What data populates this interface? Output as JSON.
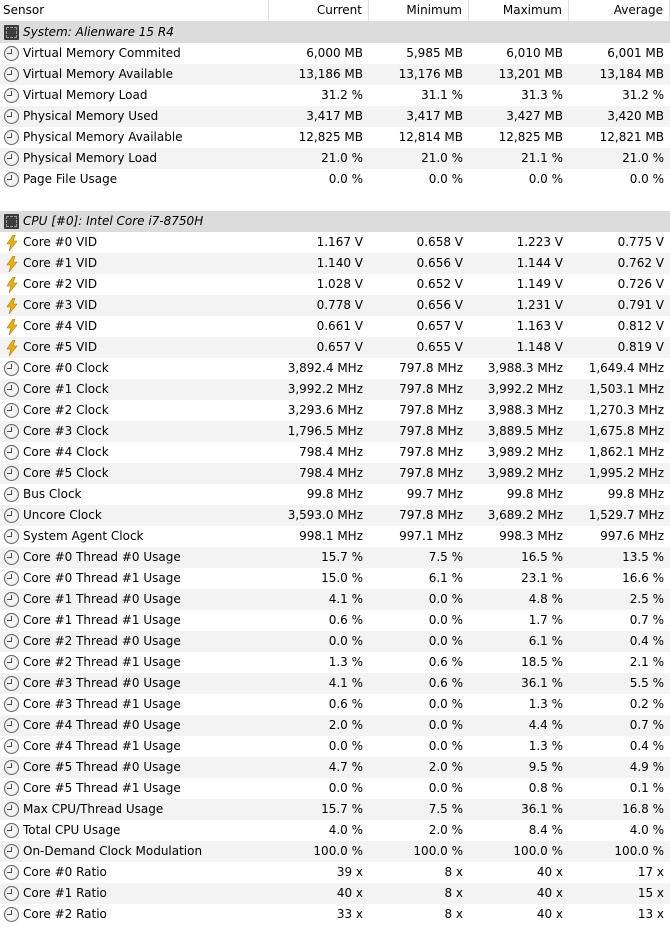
{
  "columns": [
    "Sensor",
    "Current",
    "Minimum",
    "Maximum",
    "Average"
  ],
  "rows": [
    {
      "type": "group",
      "icon": "chip-icon",
      "label": "System: Alienware 15 R4"
    },
    {
      "type": "sensor",
      "icon": "clock",
      "label": "Virtual Memory Commited",
      "current": "6,000 MB",
      "min": "5,985 MB",
      "max": "6,010 MB",
      "avg": "6,001 MB"
    },
    {
      "type": "sensor",
      "icon": "clock",
      "label": "Virtual Memory Available",
      "current": "13,186 MB",
      "min": "13,176 MB",
      "max": "13,201 MB",
      "avg": "13,184 MB"
    },
    {
      "type": "sensor",
      "icon": "clock",
      "label": "Virtual Memory Load",
      "current": "31.2 %",
      "min": "31.1 %",
      "max": "31.3 %",
      "avg": "31.2 %"
    },
    {
      "type": "sensor",
      "icon": "clock",
      "label": "Physical Memory Used",
      "current": "3,417 MB",
      "min": "3,417 MB",
      "max": "3,427 MB",
      "avg": "3,420 MB"
    },
    {
      "type": "sensor",
      "icon": "clock",
      "label": "Physical Memory Available",
      "current": "12,825 MB",
      "min": "12,814 MB",
      "max": "12,825 MB",
      "avg": "12,821 MB"
    },
    {
      "type": "sensor",
      "icon": "clock",
      "label": "Physical Memory Load",
      "current": "21.0 %",
      "min": "21.0 %",
      "max": "21.1 %",
      "avg": "21.0 %"
    },
    {
      "type": "sensor",
      "icon": "clock",
      "label": "Page File Usage",
      "current": "0.0 %",
      "min": "0.0 %",
      "max": "0.0 %",
      "avg": "0.0 %"
    },
    {
      "type": "blank"
    },
    {
      "type": "group",
      "icon": "chip-icon",
      "label": "CPU [#0]: Intel Core i7-8750H"
    },
    {
      "type": "sensor",
      "icon": "volt",
      "label": "Core #0 VID",
      "current": "1.167 V",
      "min": "0.658 V",
      "max": "1.223 V",
      "avg": "0.775 V"
    },
    {
      "type": "sensor",
      "icon": "volt",
      "label": "Core #1 VID",
      "current": "1.140 V",
      "min": "0.656 V",
      "max": "1.144 V",
      "avg": "0.762 V"
    },
    {
      "type": "sensor",
      "icon": "volt",
      "label": "Core #2 VID",
      "current": "1.028 V",
      "min": "0.652 V",
      "max": "1.149 V",
      "avg": "0.726 V"
    },
    {
      "type": "sensor",
      "icon": "volt",
      "label": "Core #3 VID",
      "current": "0.778 V",
      "min": "0.656 V",
      "max": "1.231 V",
      "avg": "0.791 V"
    },
    {
      "type": "sensor",
      "icon": "volt",
      "label": "Core #4 VID",
      "current": "0.661 V",
      "min": "0.657 V",
      "max": "1.163 V",
      "avg": "0.812 V"
    },
    {
      "type": "sensor",
      "icon": "volt",
      "label": "Core #5 VID",
      "current": "0.657 V",
      "min": "0.655 V",
      "max": "1.148 V",
      "avg": "0.819 V"
    },
    {
      "type": "sensor",
      "icon": "clock",
      "label": "Core #0 Clock",
      "current": "3,892.4 MHz",
      "min": "797.8 MHz",
      "max": "3,988.3 MHz",
      "avg": "1,649.4 MHz"
    },
    {
      "type": "sensor",
      "icon": "clock",
      "label": "Core #1 Clock",
      "current": "3,992.2 MHz",
      "min": "797.8 MHz",
      "max": "3,992.2 MHz",
      "avg": "1,503.1 MHz"
    },
    {
      "type": "sensor",
      "icon": "clock",
      "label": "Core #2 Clock",
      "current": "3,293.6 MHz",
      "min": "797.8 MHz",
      "max": "3,988.3 MHz",
      "avg": "1,270.3 MHz"
    },
    {
      "type": "sensor",
      "icon": "clock",
      "label": "Core #3 Clock",
      "current": "1,796.5 MHz",
      "min": "797.8 MHz",
      "max": "3,889.5 MHz",
      "avg": "1,675.8 MHz"
    },
    {
      "type": "sensor",
      "icon": "clock",
      "label": "Core #4 Clock",
      "current": "798.4 MHz",
      "min": "797.8 MHz",
      "max": "3,989.2 MHz",
      "avg": "1,862.1 MHz"
    },
    {
      "type": "sensor",
      "icon": "clock",
      "label": "Core #5 Clock",
      "current": "798.4 MHz",
      "min": "797.8 MHz",
      "max": "3,989.2 MHz",
      "avg": "1,995.2 MHz"
    },
    {
      "type": "sensor",
      "icon": "clock",
      "label": "Bus Clock",
      "current": "99.8 MHz",
      "min": "99.7 MHz",
      "max": "99.8 MHz",
      "avg": "99.8 MHz"
    },
    {
      "type": "sensor",
      "icon": "clock",
      "label": "Uncore Clock",
      "current": "3,593.0 MHz",
      "min": "797.8 MHz",
      "max": "3,689.2 MHz",
      "avg": "1,529.7 MHz"
    },
    {
      "type": "sensor",
      "icon": "clock",
      "label": "System Agent Clock",
      "current": "998.1 MHz",
      "min": "997.1 MHz",
      "max": "998.3 MHz",
      "avg": "997.6 MHz"
    },
    {
      "type": "sensor",
      "icon": "clock",
      "label": "Core #0 Thread #0 Usage",
      "current": "15.7 %",
      "min": "7.5 %",
      "max": "16.5 %",
      "avg": "13.5 %"
    },
    {
      "type": "sensor",
      "icon": "clock",
      "label": "Core #0 Thread #1 Usage",
      "current": "15.0 %",
      "min": "6.1 %",
      "max": "23.1 %",
      "avg": "16.6 %"
    },
    {
      "type": "sensor",
      "icon": "clock",
      "label": "Core #1 Thread #0 Usage",
      "current": "4.1 %",
      "min": "0.0 %",
      "max": "4.8 %",
      "avg": "2.5 %"
    },
    {
      "type": "sensor",
      "icon": "clock",
      "label": "Core #1 Thread #1 Usage",
      "current": "0.6 %",
      "min": "0.0 %",
      "max": "1.7 %",
      "avg": "0.7 %"
    },
    {
      "type": "sensor",
      "icon": "clock",
      "label": "Core #2 Thread #0 Usage",
      "current": "0.0 %",
      "min": "0.0 %",
      "max": "6.1 %",
      "avg": "0.4 %"
    },
    {
      "type": "sensor",
      "icon": "clock",
      "label": "Core #2 Thread #1 Usage",
      "current": "1.3 %",
      "min": "0.6 %",
      "max": "18.5 %",
      "avg": "2.1 %"
    },
    {
      "type": "sensor",
      "icon": "clock",
      "label": "Core #3 Thread #0 Usage",
      "current": "4.1 %",
      "min": "0.6 %",
      "max": "36.1 %",
      "avg": "5.5 %"
    },
    {
      "type": "sensor",
      "icon": "clock",
      "label": "Core #3 Thread #1 Usage",
      "current": "0.6 %",
      "min": "0.0 %",
      "max": "1.3 %",
      "avg": "0.2 %"
    },
    {
      "type": "sensor",
      "icon": "clock",
      "label": "Core #4 Thread #0 Usage",
      "current": "2.0 %",
      "min": "0.0 %",
      "max": "4.4 %",
      "avg": "0.7 %"
    },
    {
      "type": "sensor",
      "icon": "clock",
      "label": "Core #4 Thread #1 Usage",
      "current": "0.0 %",
      "min": "0.0 %",
      "max": "1.3 %",
      "avg": "0.4 %"
    },
    {
      "type": "sensor",
      "icon": "clock",
      "label": "Core #5 Thread #0 Usage",
      "current": "4.7 %",
      "min": "2.0 %",
      "max": "9.5 %",
      "avg": "4.9 %"
    },
    {
      "type": "sensor",
      "icon": "clock",
      "label": "Core #5 Thread #1 Usage",
      "current": "0.0 %",
      "min": "0.0 %",
      "max": "0.8 %",
      "avg": "0.1 %"
    },
    {
      "type": "sensor",
      "icon": "clock",
      "label": "Max CPU/Thread Usage",
      "current": "15.7 %",
      "min": "7.5 %",
      "max": "36.1 %",
      "avg": "16.8 %"
    },
    {
      "type": "sensor",
      "icon": "clock",
      "label": "Total CPU Usage",
      "current": "4.0 %",
      "min": "2.0 %",
      "max": "8.4 %",
      "avg": "4.0 %"
    },
    {
      "type": "sensor",
      "icon": "clock",
      "label": "On-Demand Clock Modulation",
      "current": "100.0 %",
      "min": "100.0 %",
      "max": "100.0 %",
      "avg": "100.0 %"
    },
    {
      "type": "sensor",
      "icon": "clock",
      "label": "Core #0 Ratio",
      "current": "39 x",
      "min": "8 x",
      "max": "40 x",
      "avg": "17 x"
    },
    {
      "type": "sensor",
      "icon": "clock",
      "label": "Core #1 Ratio",
      "current": "40 x",
      "min": "8 x",
      "max": "40 x",
      "avg": "15 x"
    },
    {
      "type": "sensor",
      "icon": "clock",
      "label": "Core #2 Ratio",
      "current": "33 x",
      "min": "8 x",
      "max": "40 x",
      "avg": "13 x"
    }
  ],
  "colors": {
    "group_bg": "#dcdcdc",
    "stripe": "#f3f3f3",
    "volt": "#f0b000"
  }
}
